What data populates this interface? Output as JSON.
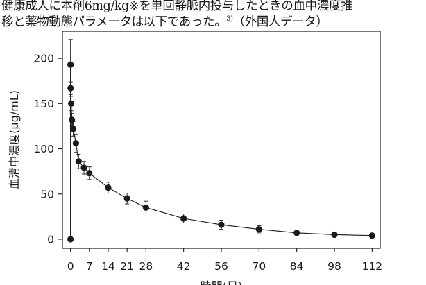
{
  "caption": {
    "line1": "健康成人に本剤6mg/kg※を単回静脈内投与したときの血中濃度推",
    "line2_pre": "移と薬物動態パラメータは以下であった。",
    "ref_mark": "3)",
    "line2_post": "（外国人データ）"
  },
  "chart_data": {
    "type": "line",
    "title": "",
    "xlabel": "時間(日)",
    "ylabel": "血清中濃度(μg/mL)",
    "xlim": [
      -3,
      115
    ],
    "ylim": [
      -10,
      230
    ],
    "x_ticks": [
      0,
      7,
      14,
      21,
      28,
      42,
      56,
      70,
      84,
      98,
      112
    ],
    "x_tick_labels": [
      "0",
      "7",
      "14",
      "21",
      "28",
      "42",
      "56",
      "70",
      "84",
      "98",
      "112"
    ],
    "y_ticks": [
      0,
      50,
      100,
      150,
      200
    ],
    "y_tick_labels": [
      "0",
      "50",
      "100",
      "150",
      "200"
    ],
    "grid": false,
    "legend": "none",
    "series": [
      {
        "x": [
          0,
          0,
          0.04,
          0.25,
          0.5,
          1,
          2,
          3,
          5,
          7,
          14,
          21,
          28,
          42,
          56,
          70,
          84,
          98,
          112
        ],
        "y": [
          0,
          193,
          167,
          150,
          132,
          122,
          106,
          86,
          79,
          73,
          57,
          45,
          35,
          23,
          16,
          11,
          7,
          5,
          4
        ],
        "error": [
          0,
          28,
          7,
          8,
          7,
          8,
          10,
          8,
          7,
          7,
          6,
          6,
          7,
          5,
          5,
          4,
          2,
          2,
          1.5
        ]
      }
    ],
    "colors": {
      "marker": "#1a1a1a",
      "line": "#1a1a1a"
    }
  }
}
